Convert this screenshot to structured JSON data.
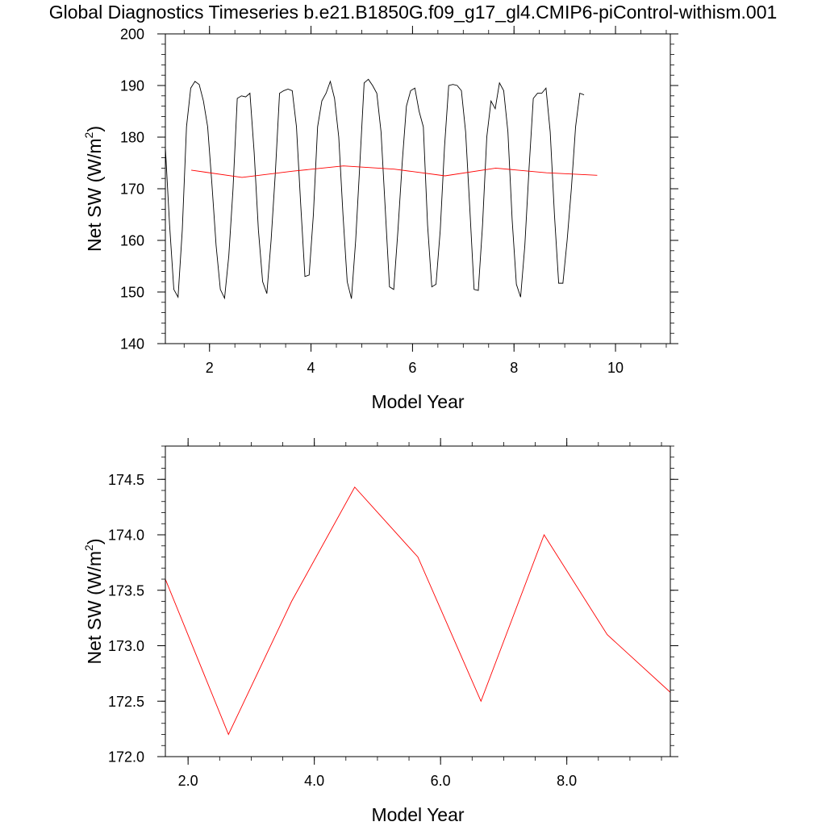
{
  "title": "Global Diagnostics Timeseries b.e21.B1850G.f09_g17_gl4.CMIP6-piControl-withism.001",
  "colors": {
    "monthly": "#000000",
    "annual": "#ff0000",
    "axis": "#000000"
  },
  "chart_data": [
    {
      "type": "line",
      "xlabel": "Model Year",
      "ylabel_main": "Net SW (W/m",
      "ylabel_sup": "2",
      "ylabel_close": ")",
      "xlim": [
        1.13,
        11.08
      ],
      "ylim": [
        140,
        200
      ],
      "xticks": [
        2,
        4,
        6,
        8,
        10
      ],
      "xtick_labels": [
        "2",
        "4",
        "6",
        "8",
        "10"
      ],
      "yticks": [
        140,
        150,
        160,
        170,
        180,
        190,
        200
      ],
      "ytick_labels": [
        "140",
        "150",
        "160",
        "170",
        "180",
        "190",
        "200"
      ],
      "series": [
        {
          "role": "monthly",
          "x_start": 1.13,
          "x_step": 0.0833333,
          "values": [
            178,
            163,
            150.5,
            149,
            162,
            182,
            189.5,
            190.8,
            190.2,
            187,
            182,
            171,
            159,
            150.5,
            148.8,
            157,
            170,
            187.5,
            188,
            187.8,
            188.5,
            177,
            162,
            152,
            149.7,
            160,
            173,
            188.5,
            189,
            189.3,
            189,
            182,
            167,
            153,
            153.3,
            165,
            182,
            187,
            188.5,
            190.8,
            187.5,
            180,
            165,
            152,
            148.7,
            160,
            175,
            190.5,
            191.2,
            190,
            188.5,
            181,
            166,
            151,
            150.5,
            162,
            175,
            186,
            189,
            189.5,
            185,
            182,
            163,
            151,
            151.5,
            162,
            178,
            190,
            190.2,
            190,
            189,
            181,
            166,
            150.5,
            150.3,
            163,
            180,
            187,
            185.5,
            190.5,
            189,
            181,
            164,
            151.5,
            149,
            159,
            174,
            187.5,
            188.5,
            188.5,
            189.5,
            181,
            165,
            151.7,
            151.7,
            160,
            170,
            182,
            188.5,
            188.2
          ]
        },
        {
          "role": "annual",
          "x": [
            1.64,
            2.64,
            3.64,
            4.64,
            5.64,
            6.64,
            7.64,
            8.64,
            9.64
          ],
          "values": [
            173.6,
            172.2,
            173.4,
            174.43,
            173.8,
            172.5,
            174.0,
            173.1,
            172.6
          ]
        }
      ]
    },
    {
      "type": "line",
      "xlabel": "Model Year",
      "ylabel_main": "Net SW (W/m",
      "ylabel_sup": "2",
      "ylabel_close": ")",
      "xlim": [
        1.64,
        9.64
      ],
      "ylim": [
        172.0,
        174.8
      ],
      "xticks": [
        2,
        4,
        6,
        8
      ],
      "xtick_labels": [
        "2.0",
        "4.0",
        "6.0",
        "8.0"
      ],
      "yticks": [
        172.0,
        172.5,
        173.0,
        173.5,
        174.0,
        174.5
      ],
      "ytick_labels": [
        "172.0",
        "172.5",
        "173.0",
        "173.5",
        "174.0",
        "174.5"
      ],
      "series": [
        {
          "role": "annual",
          "x": [
            1.64,
            2.64,
            3.64,
            4.64,
            5.64,
            6.64,
            7.64,
            8.64,
            9.64
          ],
          "values": [
            173.6,
            172.2,
            173.4,
            174.43,
            173.8,
            172.5,
            174.0,
            173.1,
            172.58
          ]
        }
      ]
    }
  ]
}
